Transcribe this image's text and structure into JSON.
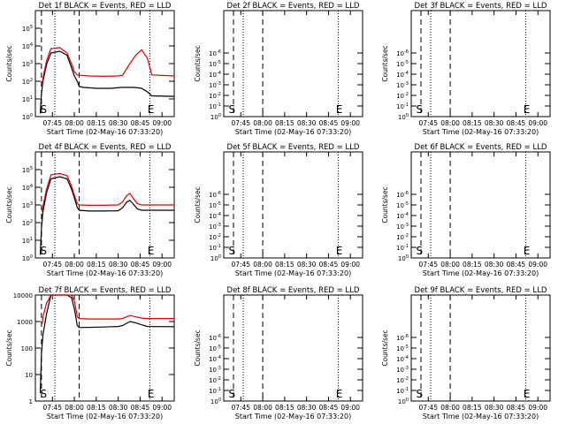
{
  "colors": {
    "background": "#ffffff",
    "axis": "#000000",
    "events": "#000000",
    "lld": "#e00000"
  },
  "chart_data": [
    {
      "type": "line",
      "title": "Det 1f BLACK = Events, RED = LLD",
      "xlabel": "Start Time (02-May-16 07:33:20)",
      "ylabel": "Counts/sec",
      "xticks": [
        "07:45",
        "08:00",
        "08:15",
        "08:30",
        "08:45",
        "09:00"
      ],
      "xlim": [
        "07:33:20",
        "09:08:20"
      ],
      "yscale": "log",
      "ylim": [
        1,
        1000000
      ],
      "yticks": [
        "10^0",
        "10^1",
        "10^2",
        "10^3",
        "10^4",
        "10^5"
      ],
      "markers": [
        {
          "label": "S",
          "time": "07:36:40"
        },
        {
          "label": "E",
          "time": "08:50:00"
        }
      ],
      "dashed_lines": [
        "07:37:30",
        "08:03:20"
      ],
      "dotted_lines": [
        "07:46:40",
        "08:51:40"
      ],
      "series": [
        {
          "name": "Events",
          "color": "#000000",
          "x": [
            "07:36:40",
            "07:37:30",
            "07:38:30",
            "07:41:00",
            "07:44:00",
            "07:50:00",
            "07:55:00",
            "07:58:00",
            "08:00:00",
            "08:02:00",
            "08:03:20",
            "08:06:00",
            "08:15:00",
            "08:25:00",
            "08:33:00",
            "08:38:00",
            "08:42:00",
            "08:46:00",
            "08:50:00",
            "08:53:00",
            "09:08:20"
          ],
          "y": [
            1.5,
            20,
            100,
            900,
            4000,
            5000,
            3000,
            600,
            200,
            100,
            50,
            45,
            40,
            40,
            45,
            45,
            44,
            40,
            25,
            15,
            14
          ]
        },
        {
          "name": "LLD",
          "color": "#e00000",
          "x": [
            "07:38:00",
            "07:38:30",
            "07:41:00",
            "07:44:00",
            "07:50:00",
            "07:55:00",
            "07:58:00",
            "08:00:00",
            "08:02:00",
            "08:03:20",
            "08:10:00",
            "08:20:00",
            "08:30:00",
            "08:33:00",
            "08:38:00",
            "08:42:00",
            "08:46:00",
            "08:50:00",
            "08:53:00",
            "09:08:20"
          ],
          "y": [
            60,
            150,
            1500,
            7000,
            8000,
            4000,
            1000,
            350,
            230,
            220,
            200,
            190,
            200,
            220,
            1000,
            3000,
            6000,
            2000,
            230,
            200
          ]
        }
      ]
    },
    {
      "type": "line",
      "title": "Det 2f BLACK = Events, RED = LLD",
      "xlabel": "Start Time (02-May-16 07:33:20)",
      "ylabel": "Counts/sec",
      "xticks": [
        "07:45",
        "08:00",
        "08:15",
        "08:30",
        "08:45",
        "09:00"
      ],
      "xlim": [
        "07:33:20",
        "09:08:20"
      ],
      "yscale": "log",
      "ylim": [
        1,
        1e-10
      ],
      "yticks": [
        "10^0",
        "10^-1",
        "10^-2",
        "10^-3",
        "10^-4",
        "10^-5",
        "10^-6"
      ],
      "markers": [
        {
          "label": "S",
          "time": "07:36:40"
        },
        {
          "label": "E",
          "time": "08:50:00"
        }
      ],
      "dashed_lines": [
        "07:40:00",
        "08:00:00"
      ],
      "dotted_lines": [
        "07:46:40",
        "08:51:40"
      ],
      "series": []
    },
    {
      "type": "line",
      "title": "Det 3f BLACK = Events, RED = LLD",
      "xlabel": "Start Time (02-May-16 07:33:20)",
      "ylabel": "Counts/sec",
      "xticks": [
        "07:45",
        "08:00",
        "08:15",
        "08:30",
        "08:45",
        "09:00"
      ],
      "xlim": [
        "07:33:20",
        "09:08:20"
      ],
      "yscale": "log",
      "ylim": [
        1,
        1e-10
      ],
      "yticks": [
        "10^0",
        "10^-1",
        "10^-2",
        "10^-3",
        "10^-4",
        "10^-5",
        "10^-6"
      ],
      "markers": [
        {
          "label": "S",
          "time": "07:36:40"
        },
        {
          "label": "E",
          "time": "08:50:00"
        }
      ],
      "dashed_lines": [
        "07:40:00",
        "08:00:00"
      ],
      "dotted_lines": [
        "07:46:40",
        "08:51:40"
      ],
      "series": []
    },
    {
      "type": "line",
      "title": "Det 4f BLACK = Events, RED = LLD",
      "xlabel": "Start Time (02-May-16 07:33:20)",
      "ylabel": "Counts/sec",
      "xticks": [
        "07:45",
        "08:00",
        "08:15",
        "08:30",
        "08:45",
        "09:00"
      ],
      "xlim": [
        "07:33:20",
        "09:08:20"
      ],
      "yscale": "log",
      "ylim": [
        1,
        1000000
      ],
      "yticks": [
        "10^0",
        "10^1",
        "10^2",
        "10^3",
        "10^4",
        "10^5"
      ],
      "markers": [
        {
          "label": "S",
          "time": "07:36:40"
        },
        {
          "label": "E",
          "time": "08:50:00"
        }
      ],
      "dashed_lines": [
        "07:37:30",
        "08:03:20"
      ],
      "dotted_lines": [
        "07:46:40",
        "08:51:40"
      ],
      "series": [
        {
          "name": "Events",
          "color": "#000000",
          "x": [
            "07:36:40",
            "07:37:30",
            "07:38:30",
            "07:41:00",
            "07:44:00",
            "07:50:00",
            "07:55:00",
            "07:58:00",
            "08:00:00",
            "08:02:00",
            "08:03:20",
            "08:10:00",
            "08:20:00",
            "08:30:00",
            "08:33:00",
            "08:36:00",
            "08:38:00",
            "08:40:00",
            "08:43:00",
            "08:46:00",
            "09:08:20"
          ],
          "y": [
            1.5,
            50,
            400,
            5000,
            30000,
            40000,
            30000,
            8000,
            2500,
            700,
            500,
            450,
            450,
            470,
            700,
            1500,
            1800,
            1200,
            600,
            500,
            500
          ]
        },
        {
          "name": "LLD",
          "color": "#e00000",
          "x": [
            "07:38:00",
            "07:38:30",
            "07:41:00",
            "07:44:00",
            "07:50:00",
            "07:55:00",
            "07:58:00",
            "08:00:00",
            "08:02:00",
            "08:03:20",
            "08:10:00",
            "08:20:00",
            "08:30:00",
            "08:33:00",
            "08:36:00",
            "08:38:00",
            "08:40:00",
            "08:43:00",
            "08:46:00",
            "09:08:20"
          ],
          "y": [
            400,
            800,
            8000,
            50000,
            60000,
            45000,
            12000,
            3500,
            1200,
            1000,
            950,
            950,
            1000,
            1500,
            3500,
            4500,
            2500,
            1200,
            1000,
            1000
          ]
        }
      ]
    },
    {
      "type": "line",
      "title": "Det 5f BLACK = Events, RED = LLD",
      "xlabel": "Start Time (02-May-16 07:33:20)",
      "ylabel": "Counts/sec",
      "xticks": [
        "07:45",
        "08:00",
        "08:15",
        "08:30",
        "08:45",
        "09:00"
      ],
      "xlim": [
        "07:33:20",
        "09:08:20"
      ],
      "yscale": "log",
      "ylim": [
        1,
        1e-10
      ],
      "yticks": [
        "10^0",
        "10^-1",
        "10^-2",
        "10^-3",
        "10^-4",
        "10^-5",
        "10^-6"
      ],
      "markers": [
        {
          "label": "S",
          "time": "07:36:40"
        },
        {
          "label": "E",
          "time": "08:50:00"
        }
      ],
      "dashed_lines": [
        "07:40:00",
        "08:00:00"
      ],
      "dotted_lines": [
        "07:46:40",
        "08:51:40"
      ],
      "series": []
    },
    {
      "type": "line",
      "title": "Det 6f BLACK = Events, RED = LLD",
      "xlabel": "Start Time (02-May-16 07:33:20)",
      "ylabel": "Counts/sec",
      "xticks": [
        "07:45",
        "08:00",
        "08:15",
        "08:30",
        "08:45",
        "09:00"
      ],
      "xlim": [
        "07:33:20",
        "09:08:20"
      ],
      "yscale": "log",
      "ylim": [
        1,
        1e-10
      ],
      "yticks": [
        "10^0",
        "10^-1",
        "10^-2",
        "10^-3",
        "10^-4",
        "10^-5",
        "10^-6"
      ],
      "markers": [
        {
          "label": "S",
          "time": "07:36:40"
        },
        {
          "label": "E",
          "time": "08:50:00"
        }
      ],
      "dashed_lines": [
        "07:40:00",
        "08:00:00"
      ],
      "dotted_lines": [
        "07:46:40",
        "08:51:40"
      ],
      "series": []
    },
    {
      "type": "line",
      "title": "Det 7f BLACK = Events, RED = LLD",
      "xlabel": "Start Time (02-May-16 07:33:20)",
      "ylabel": "Counts/sec",
      "xticks": [
        "07:45",
        "08:00",
        "08:15",
        "08:30",
        "08:45",
        "09:00"
      ],
      "xlim": [
        "07:33:20",
        "09:08:20"
      ],
      "yscale": "log",
      "ylim": [
        1,
        10000
      ],
      "yticks": [
        "1",
        "10",
        "100",
        "1000",
        "10000"
      ],
      "markers": [
        {
          "label": "S",
          "time": "07:36:40"
        },
        {
          "label": "E",
          "time": "08:50:00"
        }
      ],
      "dashed_lines": [
        "07:37:30",
        "08:03:20"
      ],
      "dotted_lines": [
        "07:46:40",
        "08:51:40"
      ],
      "series": [
        {
          "name": "Events",
          "color": "#000000",
          "x": [
            "07:36:40",
            "07:37:30",
            "07:38:30",
            "07:41:00",
            "07:44:00",
            "07:50:00",
            "07:55:00",
            "07:58:00",
            "08:00:00",
            "08:02:00",
            "08:03:20",
            "08:08:00",
            "08:20:00",
            "08:30:00",
            "08:33:00",
            "08:38:00",
            "08:42:00",
            "08:46:00",
            "08:50:00",
            "09:08:20"
          ],
          "y": [
            2,
            60,
            300,
            2000,
            10000,
            10000,
            10000,
            8000,
            3000,
            700,
            600,
            600,
            620,
            650,
            700,
            1000,
            900,
            750,
            650,
            640
          ]
        },
        {
          "name": "LLD",
          "color": "#e00000",
          "x": [
            "07:38:00",
            "07:38:30",
            "07:41:00",
            "07:44:00",
            "07:50:00",
            "07:55:00",
            "07:58:00",
            "08:00:00",
            "08:02:00",
            "08:03:20",
            "08:10:00",
            "08:20:00",
            "08:30:00",
            "08:33:00",
            "08:38:00",
            "08:42:00",
            "08:46:00",
            "08:50:00",
            "09:08:20"
          ],
          "y": [
            800,
            1500,
            5000,
            10000,
            10000,
            10000,
            10000,
            6000,
            1500,
            1300,
            1250,
            1250,
            1250,
            1300,
            1700,
            1500,
            1350,
            1300,
            1300
          ]
        }
      ]
    },
    {
      "type": "line",
      "title": "Det 8f BLACK = Events, RED = LLD",
      "xlabel": "Start Time (02-May-16 07:33:20)",
      "ylabel": "Counts/sec",
      "xticks": [
        "07:45",
        "08:00",
        "08:15",
        "08:30",
        "08:45",
        "09:00"
      ],
      "xlim": [
        "07:33:20",
        "09:08:20"
      ],
      "yscale": "log",
      "ylim": [
        1,
        1e-10
      ],
      "yticks": [
        "10^0",
        "10^-1",
        "10^-2",
        "10^-3",
        "10^-4",
        "10^-5",
        "10^-6"
      ],
      "markers": [
        {
          "label": "S",
          "time": "07:36:40"
        },
        {
          "label": "E",
          "time": "08:50:00"
        }
      ],
      "dashed_lines": [
        "07:40:00",
        "08:00:00"
      ],
      "dotted_lines": [
        "07:46:40",
        "08:51:40"
      ],
      "series": []
    },
    {
      "type": "line",
      "title": "Det 9f BLACK = Events, RED = LLD",
      "xlabel": "Start Time (02-May-16 07:33:20)",
      "ylabel": "Counts/sec",
      "xticks": [
        "07:45",
        "08:00",
        "08:15",
        "08:30",
        "08:45",
        "09:00"
      ],
      "xlim": [
        "07:33:20",
        "09:08:20"
      ],
      "yscale": "log",
      "ylim": [
        1,
        1e-10
      ],
      "yticks": [
        "10^0",
        "10^-1",
        "10^-2",
        "10^-3",
        "10^-4",
        "10^-5",
        "10^-6"
      ],
      "markers": [
        {
          "label": "S",
          "time": "07:36:40"
        },
        {
          "label": "E",
          "time": "08:50:00"
        }
      ],
      "dashed_lines": [
        "07:40:00",
        "08:00:00"
      ],
      "dotted_lines": [
        "07:46:40",
        "08:51:40"
      ],
      "series": []
    }
  ]
}
